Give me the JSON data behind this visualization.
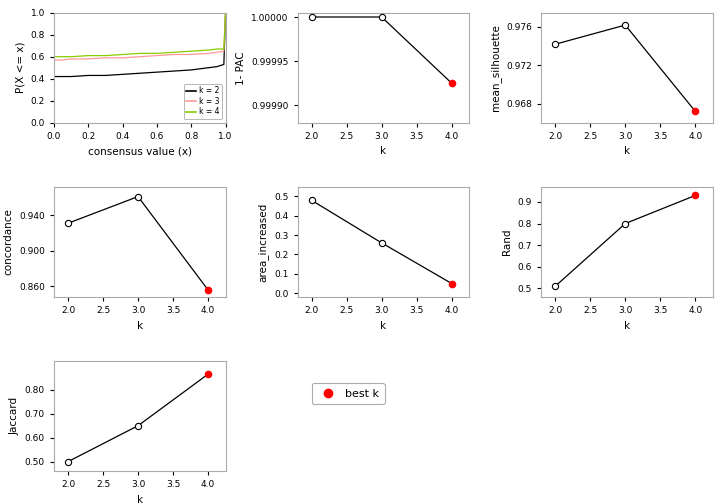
{
  "ecdf": {
    "k2": {
      "x": [
        0.0,
        0.01,
        0.05,
        0.1,
        0.2,
        0.3,
        0.4,
        0.5,
        0.6,
        0.7,
        0.8,
        0.9,
        0.95,
        0.99,
        1.0
      ],
      "y": [
        0.42,
        0.42,
        0.42,
        0.42,
        0.43,
        0.43,
        0.44,
        0.45,
        0.46,
        0.47,
        0.48,
        0.5,
        0.51,
        0.53,
        1.0
      ]
    },
    "k3": {
      "x": [
        0.0,
        0.01,
        0.05,
        0.1,
        0.2,
        0.3,
        0.4,
        0.5,
        0.6,
        0.7,
        0.8,
        0.9,
        0.95,
        0.99,
        1.0
      ],
      "y": [
        0.57,
        0.57,
        0.57,
        0.58,
        0.58,
        0.59,
        0.59,
        0.6,
        0.61,
        0.62,
        0.62,
        0.63,
        0.64,
        0.65,
        1.0
      ]
    },
    "k4": {
      "x": [
        0.0,
        0.01,
        0.05,
        0.1,
        0.2,
        0.3,
        0.4,
        0.5,
        0.6,
        0.7,
        0.8,
        0.9,
        0.95,
        0.99,
        1.0
      ],
      "y": [
        0.6,
        0.6,
        0.6,
        0.6,
        0.61,
        0.61,
        0.62,
        0.63,
        0.63,
        0.64,
        0.65,
        0.66,
        0.67,
        0.67,
        1.0
      ]
    },
    "colors": {
      "k2": "#000000",
      "k3": "#FF9999",
      "k4": "#88CC00"
    },
    "xlabel": "consensus value (x)",
    "ylabel": "P(X <= x)",
    "xlim": [
      0.0,
      1.0
    ],
    "ylim": [
      0.0,
      1.0
    ],
    "yticks": [
      0.0,
      0.2,
      0.4,
      0.6,
      0.8,
      1.0
    ],
    "xticks": [
      0.0,
      0.2,
      0.4,
      0.6,
      0.8,
      1.0
    ]
  },
  "pac": {
    "k": [
      2,
      3,
      4
    ],
    "y": [
      1.0,
      1.0,
      0.999925
    ],
    "best_k": 4,
    "ylabel": "1- PAC",
    "xlabel": "k",
    "ylim": [
      0.99988,
      1.000005
    ],
    "yticks": [
      0.9999,
      0.99995,
      1.0
    ],
    "ytick_labels": [
      "0.99990",
      "0.99995",
      "1.00000"
    ]
  },
  "silhouette": {
    "k": [
      2,
      3,
      4
    ],
    "y": [
      0.9742,
      0.9762,
      0.9672
    ],
    "best_k": 4,
    "ylabel": "mean_silhouette",
    "xlabel": "k",
    "ylim": [
      0.966,
      0.9775
    ],
    "yticks": [
      0.968,
      0.972,
      0.976
    ],
    "ytick_labels": [
      "0.968",
      "0.972",
      "0.976"
    ]
  },
  "concordance": {
    "k": [
      2,
      3,
      4
    ],
    "y": [
      0.931,
      0.961,
      0.856
    ],
    "best_k": 4,
    "ylabel": "concordance",
    "xlabel": "k",
    "ylim": [
      0.848,
      0.972
    ],
    "yticks": [
      0.86,
      0.9,
      0.94
    ],
    "ytick_labels": [
      "0.860",
      "0.900",
      "0.940"
    ]
  },
  "area_increased": {
    "k": [
      2,
      3,
      4
    ],
    "y": [
      0.48,
      0.26,
      0.05
    ],
    "best_k": 4,
    "ylabel": "area_increased",
    "xlabel": "k",
    "ylim": [
      -0.02,
      0.55
    ],
    "yticks": [
      0.0,
      0.1,
      0.2,
      0.3,
      0.4,
      0.5
    ],
    "ytick_labels": [
      "0.0",
      "0.1",
      "0.2",
      "0.3",
      "0.4",
      "0.5"
    ]
  },
  "rand": {
    "k": [
      2,
      3,
      4
    ],
    "y": [
      0.51,
      0.8,
      0.93
    ],
    "best_k": 4,
    "ylabel": "Rand",
    "xlabel": "k",
    "ylim": [
      0.46,
      0.97
    ],
    "yticks": [
      0.5,
      0.6,
      0.7,
      0.8,
      0.9
    ],
    "ytick_labels": [
      "0.5",
      "0.6",
      "0.7",
      "0.8",
      "0.9"
    ]
  },
  "jaccard": {
    "k": [
      2,
      3,
      4
    ],
    "y": [
      0.5,
      0.65,
      0.865
    ],
    "best_k": 4,
    "ylabel": "Jaccard",
    "xlabel": "k",
    "ylim": [
      0.46,
      0.92
    ],
    "yticks": [
      0.5,
      0.6,
      0.7,
      0.8
    ],
    "ytick_labels": [
      "0.50",
      "0.60",
      "0.70",
      "0.80"
    ]
  },
  "legend_label": "best k",
  "legend_color": "#FF0000",
  "line_color": "#000000",
  "bg_color": "#FFFFFF"
}
